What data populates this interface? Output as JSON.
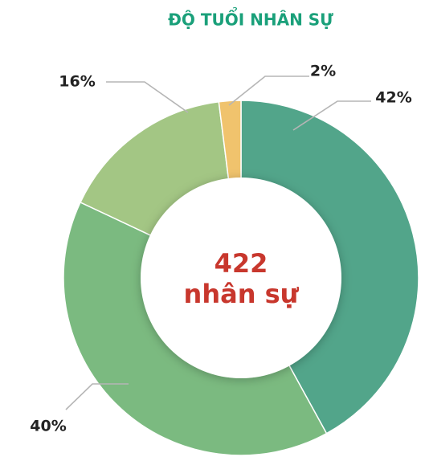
{
  "chart_data": {
    "type": "donut",
    "title": "ĐỘ TUỔI NHÂN SỰ",
    "values": [
      42,
      40,
      16,
      2
    ],
    "value_labels": [
      "42%",
      "40%",
      "16%",
      "2%"
    ],
    "colors": [
      "#52a58a",
      "#7bba80",
      "#a3c684",
      "#f0c36d"
    ],
    "center_value": 422,
    "center_label": "nhân sự"
  }
}
